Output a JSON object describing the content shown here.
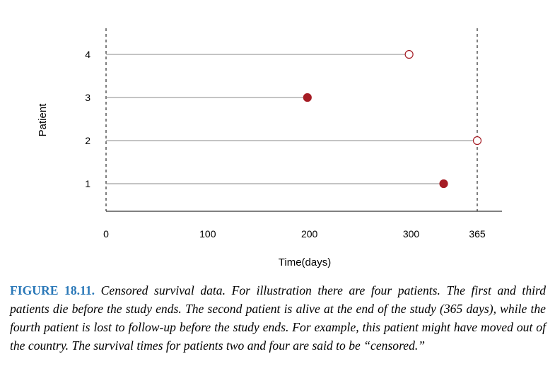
{
  "chart_data": {
    "type": "scatter",
    "xlabel": "Time(days)",
    "ylabel": "Patient",
    "xlim": [
      0,
      385
    ],
    "ylim": [
      0.5,
      4.5
    ],
    "x_ticks": [
      0,
      100,
      200,
      300,
      365
    ],
    "y_ticks": [
      1,
      2,
      3,
      4
    ],
    "reference_lines_x": [
      0,
      365
    ],
    "patients": [
      {
        "patient": 1,
        "time": 332,
        "event": "death",
        "marker": "filled"
      },
      {
        "patient": 2,
        "time": 365,
        "event": "censored",
        "marker": "open"
      },
      {
        "patient": 3,
        "time": 198,
        "event": "death",
        "marker": "filled"
      },
      {
        "patient": 4,
        "time": 298,
        "event": "censored",
        "marker": "open"
      }
    ],
    "colors": {
      "marker": "#a51c24",
      "line": "#888888",
      "axis": "#000000"
    }
  },
  "caption": {
    "label": "FIGURE 18.11.",
    "text": "Censored survival data. For illustration there are four patients. The first and third patients die before the study ends. The second patient is alive at the end of the study (365 days), while the fourth patient is lost to follow-up before the study ends. For example, this patient might have moved out of the country. The survival times for patients two and four are said to be “censored.”"
  }
}
